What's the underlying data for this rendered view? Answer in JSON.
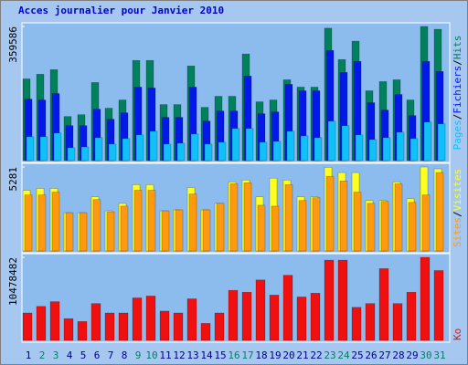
{
  "chart_data": {
    "type": "bar",
    "title": "Acces journalier pour Janvier 2010",
    "categories": [
      "1",
      "2",
      "3",
      "4",
      "5",
      "6",
      "7",
      "8",
      "9",
      "10",
      "11",
      "12",
      "13",
      "14",
      "15",
      "16",
      "17",
      "18",
      "19",
      "20",
      "21",
      "22",
      "23",
      "24",
      "25",
      "26",
      "27",
      "28",
      "29",
      "30",
      "31"
    ],
    "category_colors": [
      "#00008b",
      "#00805f",
      "#00805f",
      "#00008b",
      "#00008b",
      "#00008b",
      "#00008b",
      "#00008b",
      "#00805f",
      "#00805f",
      "#00008b",
      "#00008b",
      "#00008b",
      "#00008b",
      "#00008b",
      "#00805f",
      "#00805f",
      "#00008b",
      "#00008b",
      "#00008b",
      "#00008b",
      "#00008b",
      "#00805f",
      "#00805f",
      "#00008b",
      "#00008b",
      "#00008b",
      "#00008b",
      "#00008b",
      "#00805f",
      "#00805f"
    ],
    "separator": "/",
    "panels": [
      {
        "ylim": [
          0,
          359586
        ],
        "yticks": [
          359586
        ],
        "series": [
          {
            "name": "Hits",
            "color": "#00805c",
            "values": [
              219000,
              231500,
              243800,
              118200,
              123100,
              209300,
              140400,
              162500,
              268500,
              268500,
              150200,
              150200,
              253700,
              142800,
              172400,
              172400,
              285700,
              157600,
              162500,
              216700,
              197000,
              197000,
              355000,
              270900,
              320200,
              187200,
              211800,
              216700,
              162500,
              359586,
              352000
            ]
          },
          {
            "name": "Fichiers",
            "color": "#0018e8",
            "values": [
              165000,
              162500,
              179800,
              93600,
              93600,
              137900,
              110800,
              128100,
              197000,
              194500,
              115800,
              115800,
              197000,
              105900,
              133000,
              133000,
              226600,
              125600,
              130500,
              204400,
              187200,
              187200,
              295500,
              236400,
              266000,
              155200,
              135500,
              177300,
              120700,
              266000,
              238900
            ]
          },
          {
            "name": "Pages",
            "color": "#10c0f8",
            "values": [
              64000,
              64000,
              73900,
              34500,
              36900,
              61600,
              44300,
              59100,
              69000,
              78800,
              44300,
              46800,
              71400,
              44300,
              49300,
              86200,
              86200,
              49300,
              51700,
              78800,
              66500,
              61600,
              105900,
              93600,
              69000,
              56600,
              61600,
              76300,
              59100,
              103400,
              98500
            ]
          }
        ]
      },
      {
        "ylim": [
          0,
          5281
        ],
        "yticks": [
          5281
        ],
        "series": [
          {
            "name": "Visites",
            "color": "#ffff20",
            "values": [
              3814,
              3932,
              3932,
              2406,
              2406,
              3403,
              2523,
              2993,
              4166,
              4166,
              2523,
              2582,
              3990,
              2582,
              2993,
              4342,
              4460,
              3403,
              4577,
              4460,
              3403,
              3403,
              5260,
              4929,
              4929,
              3169,
              3169,
              4342,
              3286,
              5281,
              5164
            ]
          },
          {
            "name": "Sites",
            "color": "#ff9a10",
            "values": [
              3521,
              3521,
              3697,
              2406,
              2406,
              3227,
              2465,
              2817,
              3814,
              3814,
              2523,
              2582,
              3579,
              2582,
              2993,
              4225,
              4284,
              2875,
              2817,
              4166,
              3169,
              3345,
              4694,
              4401,
              3697,
              2993,
              3110,
              4225,
              3051,
              3521,
              4929
            ]
          }
        ]
      },
      {
        "ylim": [
          0,
          10478482
        ],
        "yticks": [
          10478482
        ],
        "series": [
          {
            "name": "Ko",
            "color": "#f01010",
            "values": [
              3453000,
              4287000,
              4882000,
              2739000,
              2381000,
              4644000,
              3453000,
              3453000,
              5358000,
              5596000,
              3691000,
              3453000,
              5239000,
              2143000,
              3453000,
              6311000,
              6073000,
              7621000,
              5716000,
              8216000,
              5477000,
              5954000,
              10121000,
              10121000,
              4168000,
              4644000,
              9050000,
              4644000,
              6073000,
              10478482,
              8811000
            ]
          }
        ]
      }
    ]
  }
}
